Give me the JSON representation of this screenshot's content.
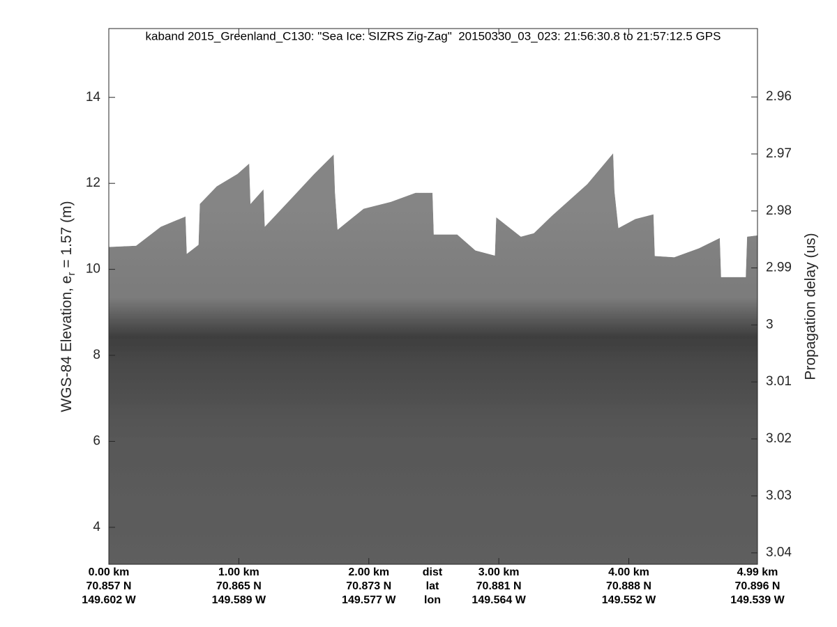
{
  "chart_data": {
    "type": "area",
    "title": "kaband 2015_Greenland_C130: \"Sea Ice: SIZRS Zig-Zag\"  20150330_03_023: 21:56:30.8 to 21:57:12.5 GPS",
    "ylabel": [
      "WGS-84 Elevation, e",
      "r",
      " = 1.57 (m)"
    ],
    "y2label": "Propagation delay (us)",
    "x": [
      0,
      0.21,
      0.4,
      0.59,
      0.6,
      0.69,
      0.7,
      0.83,
      0.99,
      1.08,
      1.09,
      1.19,
      1.2,
      1.42,
      1.58,
      1.73,
      1.74,
      1.76,
      1.96,
      2.17,
      2.36,
      2.49,
      2.5,
      2.68,
      2.82,
      2.97,
      2.98,
      3.17,
      3.27,
      3.41,
      3.68,
      3.88,
      3.89,
      3.92,
      4.05,
      4.19,
      4.2,
      4.35,
      4.54,
      4.7,
      4.71,
      4.9,
      4.91,
      4.99
    ],
    "values": [
      10.52,
      10.55,
      10.99,
      11.23,
      10.36,
      10.57,
      11.52,
      11.93,
      12.22,
      12.46,
      11.52,
      11.86,
      10.99,
      11.7,
      12.22,
      12.67,
      11.78,
      10.92,
      11.41,
      11.57,
      11.78,
      11.78,
      10.81,
      10.81,
      10.44,
      10.32,
      11.21,
      10.76,
      10.84,
      11.25,
      11.98,
      12.7,
      11.81,
      10.96,
      11.17,
      11.28,
      10.31,
      10.28,
      10.49,
      10.73,
      9.82,
      9.82,
      10.76,
      10.79
    ],
    "color": "#7c7c7c",
    "xlim": [
      0,
      4.99
    ],
    "xticks": [
      {
        "value": 0,
        "label": "0.00 km",
        "lat": "70.857 N",
        "lon": "149.602 W"
      },
      {
        "value": 1,
        "label": "1.00 km",
        "lat": "70.865 N",
        "lon": "149.589 W"
      },
      {
        "value": 2,
        "label": "2.00 km",
        "lat": "70.873 N",
        "lon": "149.577 W"
      },
      {
        "value": 3,
        "label": "3.00 km",
        "lat": "70.881 N",
        "lon": "149.564 W"
      },
      {
        "value": 4,
        "label": "4.00 km",
        "lat": "70.888 N",
        "lon": "149.552 W"
      },
      {
        "value": 4.99,
        "label": "4.99 km",
        "lat": "70.896 N",
        "lon": "149.539 W"
      }
    ],
    "xtick_row_labels": [
      "dist",
      "lat",
      "lon"
    ],
    "ylim": [
      3.14,
      15.6
    ],
    "yticks": [
      4,
      6,
      8,
      10,
      12,
      14
    ],
    "y2lim": [
      3.042,
      2.948
    ],
    "y2ticks": [
      2.96,
      2.97,
      2.98,
      2.99,
      3,
      3.01,
      3.02,
      3.03,
      3.04
    ]
  }
}
